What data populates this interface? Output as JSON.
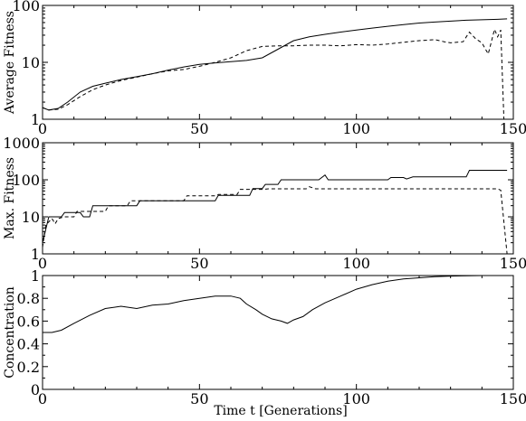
{
  "xlabel": "Time t [Generations]",
  "chart_data": [
    {
      "type": "line",
      "ylabel": "Average Fitness",
      "xlim": [
        0,
        150
      ],
      "ylim": [
        1,
        100
      ],
      "yscale": "log",
      "x_ticks": [
        "0",
        "50",
        "100",
        "150"
      ],
      "y_ticks": [
        {
          "value": 1,
          "label": "1"
        },
        {
          "value": 10,
          "label": "10"
        },
        {
          "value": 100,
          "label": "100"
        }
      ],
      "grid": false,
      "series": [
        {
          "style": "solid",
          "points": [
            [
              0,
              1.6
            ],
            [
              2,
              1.45
            ],
            [
              5,
              1.55
            ],
            [
              8,
              2.0
            ],
            [
              12,
              3.0
            ],
            [
              16,
              3.8
            ],
            [
              20,
              4.3
            ],
            [
              25,
              5.0
            ],
            [
              30,
              5.6
            ],
            [
              35,
              6.3
            ],
            [
              40,
              7.3
            ],
            [
              45,
              8.3
            ],
            [
              50,
              9.2
            ],
            [
              55,
              9.8
            ],
            [
              60,
              10.3
            ],
            [
              65,
              10.8
            ],
            [
              70,
              12.0
            ],
            [
              75,
              17.0
            ],
            [
              80,
              24.0
            ],
            [
              85,
              28.0
            ],
            [
              90,
              31.0
            ],
            [
              95,
              34.0
            ],
            [
              100,
              37.0
            ],
            [
              105,
              40.0
            ],
            [
              110,
              43.0
            ],
            [
              115,
              46.0
            ],
            [
              120,
              49.0
            ],
            [
              125,
              51.0
            ],
            [
              130,
              53.0
            ],
            [
              135,
              55.0
            ],
            [
              140,
              56.0
            ],
            [
              145,
              57.0
            ],
            [
              148,
              58.0
            ]
          ]
        },
        {
          "style": "dashed",
          "points": [
            [
              0,
              1.6
            ],
            [
              2,
              1.45
            ],
            [
              5,
              1.5
            ],
            [
              8,
              1.8
            ],
            [
              12,
              2.5
            ],
            [
              16,
              3.3
            ],
            [
              20,
              4.0
            ],
            [
              25,
              4.8
            ],
            [
              30,
              5.5
            ],
            [
              35,
              6.3
            ],
            [
              40,
              7.1
            ],
            [
              45,
              7.5
            ],
            [
              50,
              8.5
            ],
            [
              55,
              10.0
            ],
            [
              60,
              12.0
            ],
            [
              65,
              16.0
            ],
            [
              70,
              19.0
            ],
            [
              75,
              19.5
            ],
            [
              80,
              19.5
            ],
            [
              85,
              20.0
            ],
            [
              90,
              20.0
            ],
            [
              95,
              19.5
            ],
            [
              100,
              20.5
            ],
            [
              105,
              20.0
            ],
            [
              110,
              21.0
            ],
            [
              115,
              22.5
            ],
            [
              120,
              24.0
            ],
            [
              125,
              25.0
            ],
            [
              128,
              23.0
            ],
            [
              130,
              22.0
            ],
            [
              134,
              23.0
            ],
            [
              136,
              34.0
            ],
            [
              138,
              26.0
            ],
            [
              140,
              22.0
            ],
            [
              142,
              14.0
            ],
            [
              144,
              38.0
            ],
            [
              145,
              28.0
            ],
            [
              146,
              37.0
            ],
            [
              147,
              1.0
            ]
          ]
        }
      ]
    },
    {
      "type": "line",
      "ylabel": "Max. Fitness",
      "xlim": [
        0,
        150
      ],
      "ylim": [
        1,
        1000
      ],
      "yscale": "log",
      "x_ticks": [
        "0",
        "50",
        "100",
        "150"
      ],
      "y_ticks": [
        {
          "value": 1,
          "label": "1"
        },
        {
          "value": 10,
          "label": "10"
        },
        {
          "value": 100,
          "label": "100"
        },
        {
          "value": 1000,
          "label": "1000"
        }
      ],
      "grid": false,
      "series": [
        {
          "style": "solid",
          "points": [
            [
              0,
              2
            ],
            [
              2,
              10
            ],
            [
              6,
              10
            ],
            [
              7,
              13
            ],
            [
              12,
              13
            ],
            [
              13,
              10
            ],
            [
              15,
              10
            ],
            [
              16,
              20
            ],
            [
              30,
              20
            ],
            [
              31,
              27
            ],
            [
              50,
              27
            ],
            [
              55,
              27
            ],
            [
              56,
              38
            ],
            [
              66,
              38
            ],
            [
              67,
              58
            ],
            [
              70,
              58
            ],
            [
              71,
              75
            ],
            [
              75,
              75
            ],
            [
              76,
              100
            ],
            [
              88,
              100
            ],
            [
              90,
              135
            ],
            [
              91,
              100
            ],
            [
              110,
              100
            ],
            [
              111,
              115
            ],
            [
              115,
              115
            ],
            [
              116,
              105
            ],
            [
              118,
              120
            ],
            [
              135,
              120
            ],
            [
              136,
              180
            ],
            [
              148,
              180
            ]
          ]
        },
        {
          "style": "dashed",
          "points": [
            [
              0,
              1.5
            ],
            [
              1,
              6
            ],
            [
              3,
              9
            ],
            [
              4,
              6.5
            ],
            [
              5,
              9
            ],
            [
              7,
              10
            ],
            [
              10,
              10
            ],
            [
              11,
              14
            ],
            [
              20,
              14
            ],
            [
              21,
              20
            ],
            [
              27,
              20
            ],
            [
              28,
              27
            ],
            [
              45,
              27
            ],
            [
              46,
              37
            ],
            [
              55,
              37
            ],
            [
              56,
              40
            ],
            [
              62,
              40
            ],
            [
              63,
              55
            ],
            [
              70,
              55
            ],
            [
              72,
              57
            ],
            [
              75,
              57
            ],
            [
              80,
              57
            ],
            [
              84,
              57
            ],
            [
              85,
              65
            ],
            [
              87,
              57
            ],
            [
              145,
              57
            ],
            [
              146,
              52
            ],
            [
              148,
              1
            ]
          ]
        }
      ]
    },
    {
      "type": "line",
      "ylabel": "Concentration",
      "xlim": [
        0,
        150
      ],
      "ylim": [
        0,
        1
      ],
      "yscale": "linear",
      "x_ticks": [
        "0",
        "50",
        "100",
        "150"
      ],
      "y_ticks": [
        {
          "value": 0,
          "label": "0"
        },
        {
          "value": 0.2,
          "label": "0.2"
        },
        {
          "value": 0.4,
          "label": "0.4"
        },
        {
          "value": 0.6,
          "label": "0.6"
        },
        {
          "value": 0.8,
          "label": "0.8"
        },
        {
          "value": 1,
          "label": "1"
        }
      ],
      "grid": false,
      "series": [
        {
          "style": "solid",
          "points": [
            [
              0,
              0.5
            ],
            [
              3,
              0.5
            ],
            [
              6,
              0.52
            ],
            [
              10,
              0.58
            ],
            [
              15,
              0.65
            ],
            [
              20,
              0.71
            ],
            [
              25,
              0.73
            ],
            [
              30,
              0.71
            ],
            [
              35,
              0.74
            ],
            [
              40,
              0.75
            ],
            [
              45,
              0.78
            ],
            [
              50,
              0.8
            ],
            [
              55,
              0.82
            ],
            [
              60,
              0.82
            ],
            [
              63,
              0.8
            ],
            [
              65,
              0.75
            ],
            [
              68,
              0.7
            ],
            [
              70,
              0.66
            ],
            [
              73,
              0.62
            ],
            [
              76,
              0.6
            ],
            [
              78,
              0.58
            ],
            [
              80,
              0.61
            ],
            [
              83,
              0.64
            ],
            [
              86,
              0.7
            ],
            [
              90,
              0.76
            ],
            [
              95,
              0.82
            ],
            [
              100,
              0.88
            ],
            [
              105,
              0.92
            ],
            [
              110,
              0.95
            ],
            [
              115,
              0.97
            ],
            [
              120,
              0.98
            ],
            [
              125,
              0.99
            ],
            [
              130,
              0.995
            ],
            [
              140,
              1.0
            ],
            [
              148,
              1.0
            ]
          ]
        }
      ]
    }
  ]
}
